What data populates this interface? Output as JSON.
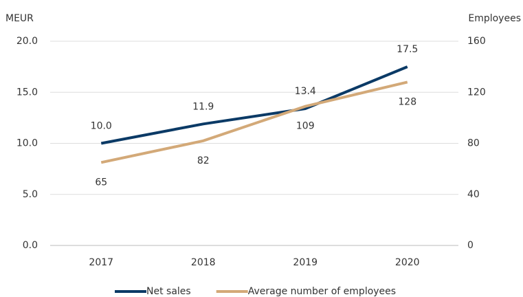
{
  "chart_data": {
    "type": "line",
    "y_label": "MEUR",
    "y2_label": "Employees",
    "categories": [
      "2017",
      "2018",
      "2019",
      "2020"
    ],
    "series": [
      {
        "name": "Net sales",
        "color": "#0b3a66",
        "values": [
          10.0,
          11.9,
          13.4,
          17.5
        ],
        "value_labels": [
          "10.0",
          "11.9",
          "13.4",
          "17.5"
        ]
      },
      {
        "name": "Average number of employees",
        "color": "#d3a978",
        "axis": "y2",
        "values": [
          65,
          82,
          109,
          128
        ]
      }
    ],
    "ylim": [
      0,
      20
    ],
    "yticks": [
      {
        "value": 0,
        "label": "0.0"
      },
      {
        "value": 5,
        "label": "5.0"
      },
      {
        "value": 10,
        "label": "10.0"
      },
      {
        "value": 15,
        "label": "15.0"
      },
      {
        "value": 20,
        "label": "20.0"
      }
    ],
    "y2lim": [
      0,
      160
    ],
    "y2ticks": [
      0,
      40,
      80,
      120,
      160
    ],
    "grid": true,
    "legend": "bottom"
  }
}
